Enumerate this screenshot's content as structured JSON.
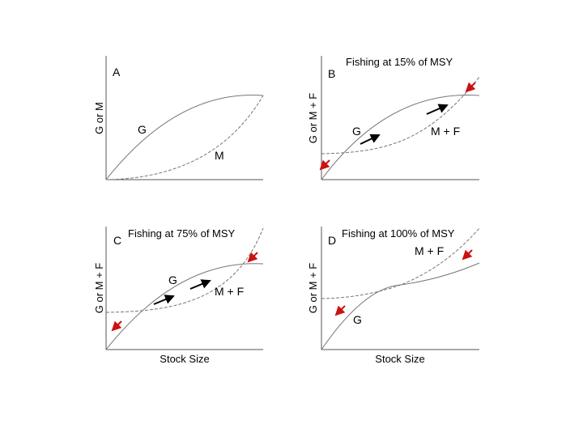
{
  "panels": [
    {
      "id": "A",
      "letter": "A",
      "title": "",
      "ylabel": "G or M",
      "xlabel": "",
      "labels": {
        "g": "G",
        "m": "M"
      }
    },
    {
      "id": "B",
      "letter": "B",
      "title": "Fishing at 15% of MSY",
      "ylabel": "G or M + F",
      "xlabel": "",
      "labels": {
        "g": "G",
        "mf": "M + F"
      }
    },
    {
      "id": "C",
      "letter": "C",
      "title": "Fishing at 75% of MSY",
      "ylabel": "G or M + F",
      "xlabel": "Stock Size",
      "labels": {
        "g": "G",
        "mf": "M + F"
      }
    },
    {
      "id": "D",
      "letter": "D",
      "title": "Fishing at 100% of MSY",
      "ylabel": "G or M + F",
      "xlabel": "Stock Size",
      "labels": {
        "g": "G",
        "mf": "M + F"
      }
    }
  ],
  "colors": {
    "axis": "#555555",
    "curve": "#777777",
    "red_arrow": "#cc1111",
    "black_arrow": "#000000"
  }
}
